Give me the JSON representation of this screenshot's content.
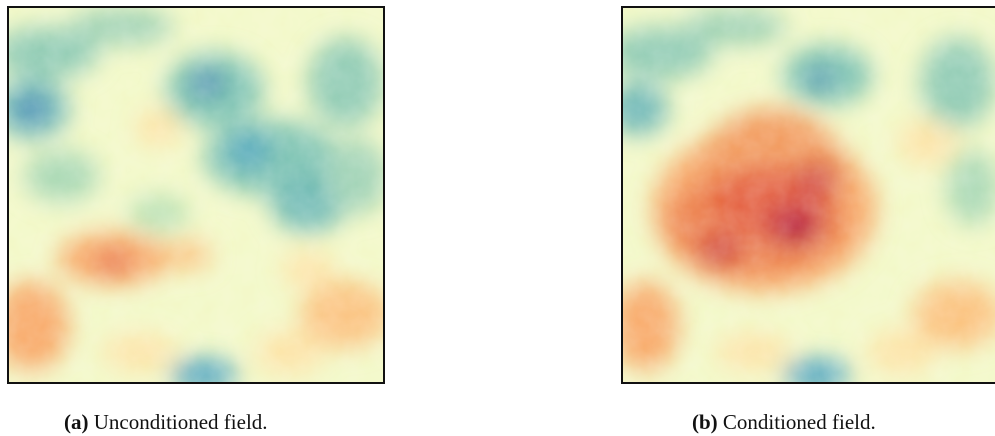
{
  "figures": [
    {
      "label": "(a)",
      "caption": "Unconditioned field."
    },
    {
      "label": "(b)",
      "caption": "Conditioned field."
    }
  ],
  "colormap": [
    "#2c6fb3",
    "#3f9dbd",
    "#7cc2b1",
    "#c6e7b0",
    "#f4fbc2",
    "#fde3a5",
    "#f8a866",
    "#e4603f",
    "#b3123f"
  ]
}
